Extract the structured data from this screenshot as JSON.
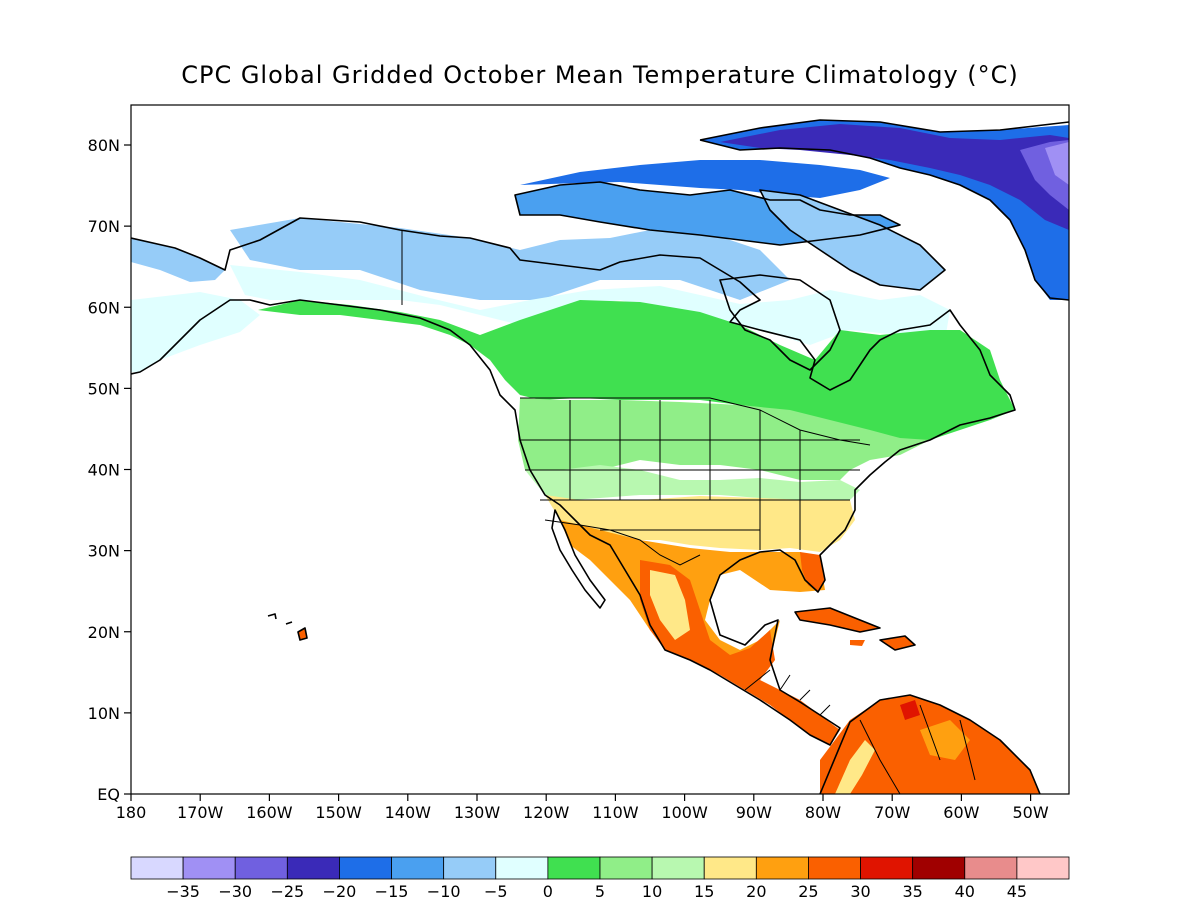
{
  "title": "CPC Global Gridded October Mean Temperature Climatology (°C)",
  "y_ticks": [
    "80N",
    "70N",
    "60N",
    "50N",
    "40N",
    "30N",
    "20N",
    "10N",
    "EQ"
  ],
  "x_ticks": [
    "180",
    "170W",
    "160W",
    "150W",
    "140W",
    "130W",
    "120W",
    "110W",
    "100W",
    "90W",
    "80W",
    "70W",
    "60W",
    "50W"
  ],
  "colorbar": {
    "labels": [
      "-35",
      "-30",
      "-25",
      "-20",
      "-15",
      "-10",
      "-5",
      "0",
      "5",
      "10",
      "15",
      "20",
      "25",
      "30",
      "35",
      "40",
      "45"
    ],
    "colors": [
      "#d8d8ff",
      "#a090f4",
      "#7060e0",
      "#3a2ab8",
      "#1e6ee8",
      "#4aa0f0",
      "#96ccf8",
      "#e0ffff",
      "#40e050",
      "#90ee88",
      "#b8f8b0",
      "#ffe888",
      "#ffa010",
      "#fa6000",
      "#e01400",
      "#a00000",
      "#e88c8c",
      "#ffc8c8"
    ]
  }
}
